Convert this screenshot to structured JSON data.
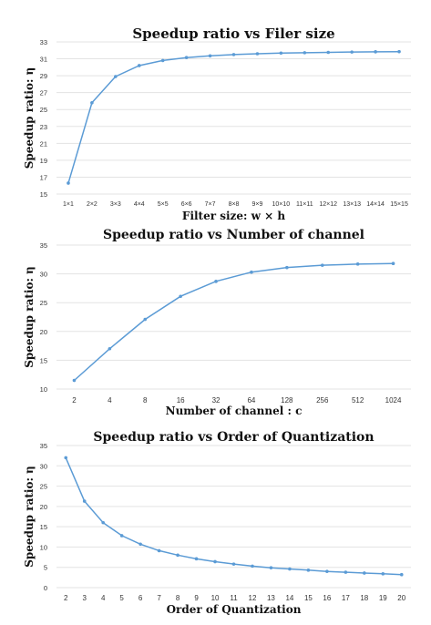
{
  "chart_data": [
    {
      "type": "line",
      "title": "Speedup ratio vs Filer size",
      "xlabel": "Filter size: w × h",
      "ylabel": "Speedup ratio: η",
      "categories": [
        "1×1",
        "2×2",
        "3×3",
        "4×4",
        "5×5",
        "6×6",
        "7×7",
        "8×8",
        "9×9",
        "10×10",
        "11×11",
        "12×12",
        "13×13",
        "14×14",
        "15×15"
      ],
      "series": [
        {
          "values": [
            16.3,
            25.8,
            28.9,
            30.2,
            30.8,
            31.15,
            31.35,
            31.5,
            31.6,
            31.68,
            31.72,
            31.76,
            31.8,
            31.83,
            31.85
          ]
        }
      ],
      "ylim": [
        15,
        33
      ],
      "yticks": [
        15,
        17,
        19,
        21,
        23,
        25,
        27,
        29,
        31,
        33
      ],
      "grid": true,
      "color": "#5b9bd5"
    },
    {
      "type": "line",
      "title": "Speedup ratio vs Number of channel",
      "xlabel": "Number of channel : c",
      "ylabel": "Speedup ratio: η",
      "categories": [
        "2",
        "4",
        "8",
        "16",
        "32",
        "64",
        "128",
        "256",
        "512",
        "1024"
      ],
      "series": [
        {
          "values": [
            11.5,
            17.0,
            22.1,
            26.1,
            28.7,
            30.3,
            31.1,
            31.5,
            31.7,
            31.8
          ]
        }
      ],
      "ylim": [
        10,
        35
      ],
      "yticks": [
        10,
        15,
        20,
        25,
        30,
        35
      ],
      "grid": true,
      "color": "#5b9bd5"
    },
    {
      "type": "line",
      "title": "Speedup ratio vs Order of Quantization",
      "xlabel": "Order of Quantization",
      "ylabel": "Speedup ratio: η",
      "categories": [
        "2",
        "3",
        "4",
        "5",
        "6",
        "7",
        "8",
        "9",
        "10",
        "11",
        "12",
        "13",
        "14",
        "15",
        "16",
        "17",
        "18",
        "19",
        "20"
      ],
      "series": [
        {
          "values": [
            32.0,
            21.3,
            16.0,
            12.8,
            10.7,
            9.1,
            8.0,
            7.1,
            6.4,
            5.8,
            5.3,
            4.9,
            4.6,
            4.3,
            4.0,
            3.8,
            3.6,
            3.4,
            3.2
          ]
        }
      ],
      "ylim": [
        0,
        35
      ],
      "yticks": [
        0,
        5,
        10,
        15,
        20,
        25,
        30,
        35
      ],
      "grid": true,
      "color": "#5b9bd5"
    }
  ]
}
